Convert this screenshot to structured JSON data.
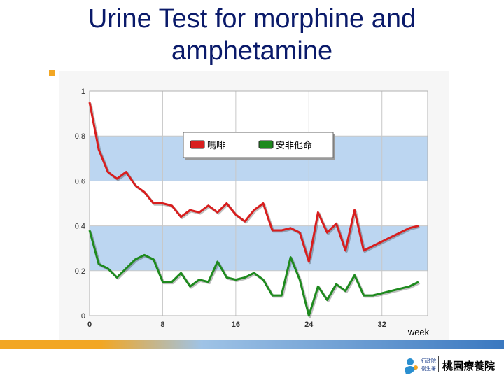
{
  "slide": {
    "title_line1": "Urine Test for morphine and",
    "title_line2": "amphetamine",
    "logo_text": "桃園療養院",
    "logo_small_line1": "行政院",
    "logo_small_line2": "衛生署"
  },
  "chart_data": {
    "type": "line",
    "title": "",
    "xlabel": "week",
    "ylabel": "",
    "xlim": [
      0,
      37
    ],
    "ylim": [
      0,
      1
    ],
    "x_ticks": [
      "0",
      "8",
      "16",
      "24",
      "32"
    ],
    "y_ticks": [
      "0",
      "0.2",
      "0.4",
      "0.6",
      "0.8",
      "1"
    ],
    "grid": true,
    "banded_background": true,
    "legend_position": "top-center",
    "colors": {
      "band": "#bcd6f1",
      "panel": "#f6f6f6",
      "grid": "#c8c8c8"
    },
    "x": [
      0,
      1,
      2,
      3,
      4,
      5,
      6,
      7,
      8,
      9,
      10,
      11,
      12,
      13,
      14,
      15,
      16,
      17,
      18,
      19,
      20,
      21,
      22,
      23,
      24,
      25,
      26,
      27,
      28,
      29,
      30,
      31,
      32,
      33,
      34,
      35,
      36
    ],
    "series": [
      {
        "name": "嗎啡",
        "color": "#d81e1e",
        "values": [
          0.95,
          0.74,
          0.64,
          0.61,
          0.64,
          0.58,
          0.55,
          0.5,
          0.5,
          0.49,
          0.44,
          0.47,
          0.46,
          0.49,
          0.46,
          0.5,
          0.45,
          0.42,
          0.47,
          0.5,
          0.38,
          0.38,
          0.39,
          0.37,
          0.24,
          0.46,
          0.37,
          0.41,
          0.29,
          0.47,
          0.29,
          0.31,
          0.33,
          0.35,
          0.37,
          0.39,
          0.4
        ]
      },
      {
        "name": "安非他命",
        "color": "#1e8a1e",
        "values": [
          0.38,
          0.23,
          0.21,
          0.17,
          0.21,
          0.25,
          0.27,
          0.25,
          0.15,
          0.15,
          0.19,
          0.13,
          0.16,
          0.15,
          0.24,
          0.17,
          0.16,
          0.17,
          0.19,
          0.16,
          0.09,
          0.09,
          0.26,
          0.16,
          0.0,
          0.13,
          0.07,
          0.14,
          0.11,
          0.18,
          0.09,
          0.09,
          0.1,
          0.11,
          0.12,
          0.13,
          0.15
        ]
      }
    ]
  }
}
